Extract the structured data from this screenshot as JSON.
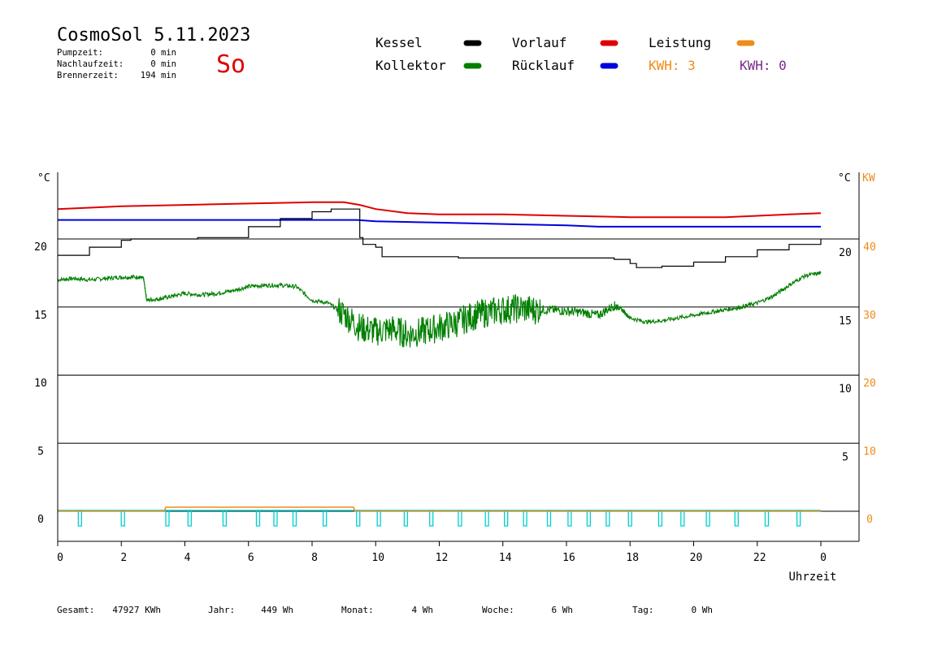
{
  "header": {
    "title": "CosmoSol 5.11.2023",
    "day": "So",
    "stats": [
      {
        "label": "Pumpzeit:",
        "value": "0 min"
      },
      {
        "label": "Nachlaufzeit:",
        "value": "0 min"
      },
      {
        "label": "Brennerzeit:",
        "value": "194 min"
      }
    ]
  },
  "legend": [
    {
      "name": "Kessel",
      "color": "#000000"
    },
    {
      "name": "Vorlauf",
      "color": "#e00000"
    },
    {
      "name": "Leistung",
      "color": "#f08a18"
    },
    {
      "name": "Kollektor",
      "color": "#007f00"
    },
    {
      "name": "Rücklauf",
      "color": "#0000e0"
    }
  ],
  "kwh": [
    {
      "text": "KWH: 3",
      "color": "#f08a18"
    },
    {
      "text": "KWH: 0",
      "color": "#7a2a8a"
    }
  ],
  "footer": [
    {
      "label": "Gesamt:",
      "value": "47927 KWh"
    },
    {
      "label": "Jahr:",
      "value": "449 Wh"
    },
    {
      "label": "Monat:",
      "value": "4 Wh"
    },
    {
      "label": "Woche:",
      "value": "6 Wh"
    },
    {
      "label": "Tag:",
      "value": "0 Wh"
    }
  ],
  "chart_data": {
    "type": "line",
    "xlabel": "Uhrzeit",
    "left_unit": "°C",
    "right_unit": "°C",
    "right2_unit": "KW",
    "xlim": [
      0,
      24
    ],
    "ylim": [
      -2,
      25
    ],
    "x_ticks": [
      "0",
      "2",
      "4",
      "6",
      "8",
      "10",
      "12",
      "14",
      "16",
      "18",
      "20",
      "22",
      "0"
    ],
    "y_ticks_left": [
      "0",
      "5",
      "10",
      "15",
      "20"
    ],
    "y_ticks_right": [
      "5",
      "10",
      "15",
      "20"
    ],
    "y_ticks_kw": [
      "0",
      "10",
      "20",
      "30",
      "40"
    ],
    "grid_y": [
      0,
      5,
      10,
      15,
      20
    ],
    "series": [
      {
        "name": "Vorlauf",
        "color": "#e00000",
        "x": [
          0,
          2,
          4,
          6,
          8,
          9,
          9.5,
          10,
          11,
          12,
          14,
          16,
          18,
          20,
          21,
          22,
          23,
          24
        ],
        "y": [
          22.2,
          22.4,
          22.5,
          22.6,
          22.7,
          22.7,
          22.5,
          22.2,
          21.9,
          21.8,
          21.8,
          21.7,
          21.6,
          21.6,
          21.6,
          21.7,
          21.8,
          21.9
        ]
      },
      {
        "name": "Rücklauf",
        "color": "#0000e0",
        "x": [
          0,
          2,
          4,
          6,
          8,
          9.4,
          10,
          12,
          14,
          16,
          17,
          18,
          20,
          22,
          24
        ],
        "y": [
          21.4,
          21.4,
          21.4,
          21.4,
          21.4,
          21.4,
          21.3,
          21.2,
          21.1,
          21.0,
          20.9,
          20.9,
          20.9,
          20.9,
          20.9
        ]
      },
      {
        "name": "Kessel",
        "color": "#000000",
        "x": [
          0,
          1,
          2,
          2.3,
          4,
          4.4,
          6,
          7,
          8,
          8.6,
          9.3,
          9.5,
          9.6,
          10,
          10.2,
          11,
          12,
          12.6,
          14,
          16,
          17.5,
          18,
          18.2,
          19,
          20,
          21,
          22,
          23,
          24
        ],
        "y": [
          18.8,
          19.4,
          19.9,
          20.0,
          20.0,
          20.1,
          20.9,
          21.5,
          22.0,
          22.2,
          22.2,
          20.1,
          19.6,
          19.4,
          18.7,
          18.7,
          18.7,
          18.6,
          18.6,
          18.6,
          18.5,
          18.2,
          17.9,
          18.0,
          18.3,
          18.7,
          19.2,
          19.6,
          20.0
        ]
      },
      {
        "name": "Kollektor",
        "color": "#007f00",
        "x": [
          0,
          0.5,
          1,
          1.5,
          2,
          2.5,
          2.7,
          2.8,
          3.2,
          3.6,
          4,
          4.5,
          5,
          5.5,
          6,
          6.5,
          7,
          7.5,
          8,
          8.5,
          9,
          9.5,
          10,
          10.5,
          11,
          11.5,
          12,
          12.5,
          13,
          13.5,
          14,
          14.5,
          15,
          15.5,
          16,
          16.5,
          17,
          17.5,
          17.7,
          18,
          18.5,
          19,
          19.5,
          20,
          20.5,
          21,
          21.5,
          22,
          22.5,
          23,
          23.5,
          24
        ],
        "y": [
          17.0,
          17.1,
          17.0,
          17.1,
          17.2,
          17.2,
          17.1,
          15.5,
          15.6,
          15.8,
          16.0,
          15.9,
          16.0,
          16.2,
          16.5,
          16.6,
          16.6,
          16.5,
          15.5,
          15.3,
          14.5,
          13.5,
          13.2,
          13.4,
          13.0,
          13.2,
          13.5,
          13.8,
          14.3,
          14.6,
          14.8,
          14.9,
          14.8,
          14.8,
          14.7,
          14.6,
          14.4,
          15.1,
          14.9,
          14.2,
          13.9,
          14.0,
          14.2,
          14.4,
          14.6,
          14.8,
          15.0,
          15.3,
          15.8,
          16.6,
          17.3,
          17.5
        ]
      },
      {
        "name": "Leistung",
        "color": "#f08a18",
        "x": [
          0,
          3.35,
          3.4,
          9.3,
          9.35,
          24
        ],
        "y": [
          0,
          0,
          0.3,
          0.3,
          0,
          0
        ]
      }
    ],
    "pump_pulses_x": [
      0.7,
      2.05,
      3.45,
      4.15,
      5.25,
      6.3,
      6.85,
      7.45,
      8.4,
      9.45,
      10.1,
      10.95,
      11.75,
      12.65,
      13.5,
      14.1,
      14.7,
      15.45,
      16.1,
      16.7,
      17.3,
      18.0,
      18.95,
      19.65,
      20.45,
      21.35,
      22.3,
      23.3
    ],
    "pump_color": "#00d0d0"
  }
}
